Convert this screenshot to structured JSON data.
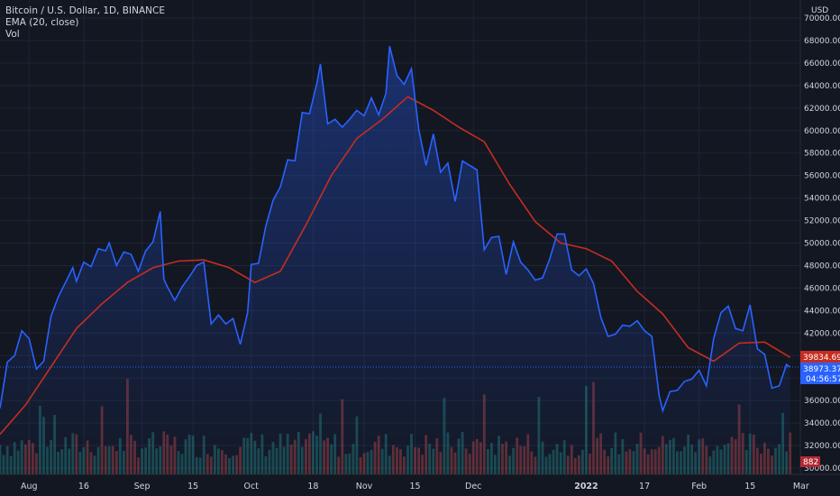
{
  "legend": {
    "symbol": "Bitcoin / U.S. Dollar, 1D, BINANCE",
    "ema": "EMA (20, close)",
    "vol": "Vol"
  },
  "price_axis": {
    "currency": "USD",
    "tick_labels": [
      "70000.00",
      "68000.00",
      "66000.00",
      "64000.00",
      "62000.00",
      "60000.00",
      "58000.00",
      "56000.00",
      "54000.00",
      "52000.00",
      "50000.00",
      "48000.00",
      "46000.00",
      "44000.00",
      "42000.00",
      "40000.00",
      "38000.00",
      "36000.00",
      "34000.00",
      "32000.00",
      "30000.00"
    ]
  },
  "time_axis": {
    "tick_labels": [
      "Aug",
      "16",
      "Sep",
      "15",
      "Oct",
      "18",
      "Nov",
      "15",
      "Dec",
      "2022",
      "17",
      "Feb",
      "15",
      "Mar"
    ]
  },
  "tags": {
    "ema_value": "39834.69",
    "last_price": "38973.37",
    "countdown": "04:56:57",
    "volume": "882"
  },
  "colors": {
    "background": "#131722",
    "price_line": "#2962ff",
    "ema_line": "#c62d20",
    "volume_up": "#26a69a",
    "volume_down": "#ef5350",
    "grid": "#1f2433"
  },
  "chart_data": {
    "type": "line",
    "title": "Bitcoin / U.S. Dollar, 1D, BINANCE",
    "xlabel": "",
    "ylabel": "USD",
    "ylim": [
      30000,
      70000
    ],
    "grid": true,
    "x_range": [
      "2021-07-24",
      "2022-02-26"
    ],
    "series": [
      {
        "name": "Bitcoin / U.S. Dollar",
        "points": [
          [
            "2021-07-24",
            35300
          ],
          [
            "2021-07-26",
            39400
          ],
          [
            "2021-07-28",
            40000
          ],
          [
            "2021-07-30",
            42200
          ],
          [
            "2021-08-01",
            41500
          ],
          [
            "2021-08-03",
            38800
          ],
          [
            "2021-08-05",
            39500
          ],
          [
            "2021-08-07",
            43500
          ],
          [
            "2021-08-09",
            45200
          ],
          [
            "2021-08-11",
            46500
          ],
          [
            "2021-08-13",
            47800
          ],
          [
            "2021-08-14",
            46600
          ],
          [
            "2021-08-16",
            48300
          ],
          [
            "2021-08-18",
            47900
          ],
          [
            "2021-08-20",
            49500
          ],
          [
            "2021-08-22",
            49300
          ],
          [
            "2021-08-23",
            50000
          ],
          [
            "2021-08-25",
            48000
          ],
          [
            "2021-08-27",
            49200
          ],
          [
            "2021-08-29",
            49000
          ],
          [
            "2021-08-31",
            47500
          ],
          [
            "2021-09-02",
            49300
          ],
          [
            "2021-09-04",
            50100
          ],
          [
            "2021-09-06",
            52800
          ],
          [
            "2021-09-07",
            46800
          ],
          [
            "2021-09-08",
            46100
          ],
          [
            "2021-09-10",
            44900
          ],
          [
            "2021-09-12",
            46100
          ],
          [
            "2021-09-14",
            47000
          ],
          [
            "2021-09-16",
            48000
          ],
          [
            "2021-09-18",
            48300
          ],
          [
            "2021-09-20",
            42800
          ],
          [
            "2021-09-22",
            43600
          ],
          [
            "2021-09-24",
            42800
          ],
          [
            "2021-09-26",
            43300
          ],
          [
            "2021-09-28",
            41000
          ],
          [
            "2021-09-30",
            43800
          ],
          [
            "2021-10-01",
            48100
          ],
          [
            "2021-10-03",
            48200
          ],
          [
            "2021-10-05",
            51500
          ],
          [
            "2021-10-07",
            53800
          ],
          [
            "2021-10-09",
            55000
          ],
          [
            "2021-10-11",
            57400
          ],
          [
            "2021-10-13",
            57300
          ],
          [
            "2021-10-15",
            61600
          ],
          [
            "2021-10-17",
            61500
          ],
          [
            "2021-10-19",
            64200
          ],
          [
            "2021-10-20",
            65900
          ],
          [
            "2021-10-22",
            60600
          ],
          [
            "2021-10-24",
            61000
          ],
          [
            "2021-10-26",
            60300
          ],
          [
            "2021-10-28",
            61000
          ],
          [
            "2021-10-30",
            61800
          ],
          [
            "2021-11-01",
            61300
          ],
          [
            "2021-11-03",
            62900
          ],
          [
            "2021-11-05",
            61400
          ],
          [
            "2021-11-07",
            63300
          ],
          [
            "2021-11-08",
            67500
          ],
          [
            "2021-11-10",
            64900
          ],
          [
            "2021-11-12",
            64100
          ],
          [
            "2021-11-14",
            65500
          ],
          [
            "2021-11-16",
            60100
          ],
          [
            "2021-11-18",
            56900
          ],
          [
            "2021-11-20",
            59700
          ],
          [
            "2021-11-22",
            56300
          ],
          [
            "2021-11-24",
            57100
          ],
          [
            "2021-11-26",
            53700
          ],
          [
            "2021-11-28",
            57300
          ],
          [
            "2021-11-30",
            56900
          ],
          [
            "2021-12-02",
            56500
          ],
          [
            "2021-12-04",
            49400
          ],
          [
            "2021-12-06",
            50500
          ],
          [
            "2021-12-08",
            50600
          ],
          [
            "2021-12-10",
            47200
          ],
          [
            "2021-12-12",
            50100
          ],
          [
            "2021-12-14",
            48300
          ],
          [
            "2021-12-16",
            47600
          ],
          [
            "2021-12-18",
            46700
          ],
          [
            "2021-12-20",
            46900
          ],
          [
            "2021-12-22",
            48600
          ],
          [
            "2021-12-24",
            50800
          ],
          [
            "2021-12-26",
            50800
          ],
          [
            "2021-12-28",
            47600
          ],
          [
            "2021-12-30",
            47100
          ],
          [
            "2022-01-01",
            47700
          ],
          [
            "2022-01-03",
            46400
          ],
          [
            "2022-01-05",
            43400
          ],
          [
            "2022-01-07",
            41700
          ],
          [
            "2022-01-09",
            41900
          ],
          [
            "2022-01-11",
            42700
          ],
          [
            "2022-01-13",
            42600
          ],
          [
            "2022-01-15",
            43100
          ],
          [
            "2022-01-17",
            42200
          ],
          [
            "2022-01-19",
            41700
          ],
          [
            "2022-01-21",
            36500
          ],
          [
            "2022-01-22",
            35100
          ],
          [
            "2022-01-24",
            36800
          ],
          [
            "2022-01-26",
            36900
          ],
          [
            "2022-01-28",
            37700
          ],
          [
            "2022-01-30",
            37900
          ],
          [
            "2022-02-01",
            38700
          ],
          [
            "2022-02-03",
            37300
          ],
          [
            "2022-02-05",
            41500
          ],
          [
            "2022-02-07",
            43800
          ],
          [
            "2022-02-09",
            44400
          ],
          [
            "2022-02-11",
            42400
          ],
          [
            "2022-02-13",
            42200
          ],
          [
            "2022-02-15",
            44500
          ],
          [
            "2022-02-17",
            40600
          ],
          [
            "2022-02-19",
            40100
          ],
          [
            "2022-02-21",
            37100
          ],
          [
            "2022-02-23",
            37300
          ],
          [
            "2022-02-25",
            39200
          ],
          [
            "2022-02-26",
            38973.37
          ]
        ]
      },
      {
        "name": "EMA (20, close)",
        "points": [
          [
            "2021-07-24",
            33000
          ],
          [
            "2021-07-31",
            35600
          ],
          [
            "2021-08-07",
            39000
          ],
          [
            "2021-08-14",
            42400
          ],
          [
            "2021-08-21",
            44600
          ],
          [
            "2021-08-28",
            46500
          ],
          [
            "2021-09-04",
            47800
          ],
          [
            "2021-09-11",
            48400
          ],
          [
            "2021-09-18",
            48500
          ],
          [
            "2021-09-25",
            47800
          ],
          [
            "2021-10-02",
            46500
          ],
          [
            "2021-10-09",
            47500
          ],
          [
            "2021-10-16",
            51600
          ],
          [
            "2021-10-23",
            56000
          ],
          [
            "2021-10-30",
            59300
          ],
          [
            "2021-11-06",
            61000
          ],
          [
            "2021-11-13",
            63000
          ],
          [
            "2021-11-20",
            61800
          ],
          [
            "2021-11-27",
            60300
          ],
          [
            "2021-12-04",
            59000
          ],
          [
            "2021-12-11",
            55200
          ],
          [
            "2021-12-18",
            51900
          ],
          [
            "2021-12-25",
            50000
          ],
          [
            "2022-01-01",
            49500
          ],
          [
            "2022-01-08",
            48400
          ],
          [
            "2022-01-15",
            45700
          ],
          [
            "2022-01-22",
            43700
          ],
          [
            "2022-01-29",
            40700
          ],
          [
            "2022-02-05",
            39500
          ],
          [
            "2022-02-12",
            41100
          ],
          [
            "2022-02-19",
            41200
          ],
          [
            "2022-02-26",
            39834.69
          ]
        ]
      }
    ]
  }
}
